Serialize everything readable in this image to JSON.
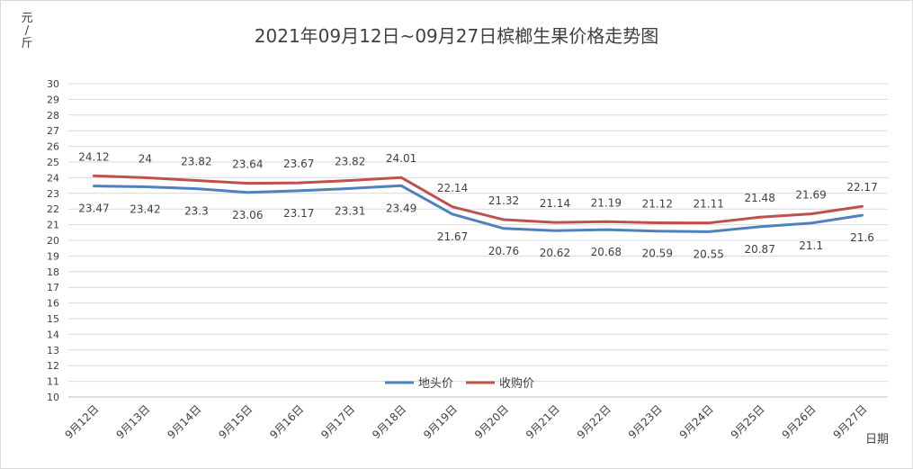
{
  "chart_data": {
    "type": "line",
    "title": "2021年09月12日~09月27日槟榔生果价格走势图",
    "ylabel": "元/斤",
    "xlabel": "日期",
    "ylim": [
      10,
      30
    ],
    "ytick_step": 1,
    "grid": true,
    "legend_position": "bottom-center",
    "categories": [
      "9月12日",
      "9月13日",
      "9月14日",
      "9月15日",
      "9月16日",
      "9月17日",
      "9月18日",
      "9月19日",
      "9月20日",
      "9月21日",
      "9月22日",
      "9月23日",
      "9月24日",
      "9月25日",
      "9月26日",
      "9月27日"
    ],
    "series": [
      {
        "name": "地头价",
        "color": "#4f81bd",
        "values": [
          23.47,
          23.42,
          23.3,
          23.06,
          23.17,
          23.31,
          23.49,
          21.67,
          20.76,
          20.62,
          20.68,
          20.59,
          20.55,
          20.87,
          21.1,
          21.6
        ]
      },
      {
        "name": "收购价",
        "color": "#c0504d",
        "values": [
          24.12,
          24,
          23.82,
          23.64,
          23.67,
          23.82,
          24.01,
          22.14,
          21.32,
          21.14,
          21.19,
          21.12,
          21.11,
          21.48,
          21.69,
          22.17
        ]
      }
    ]
  }
}
